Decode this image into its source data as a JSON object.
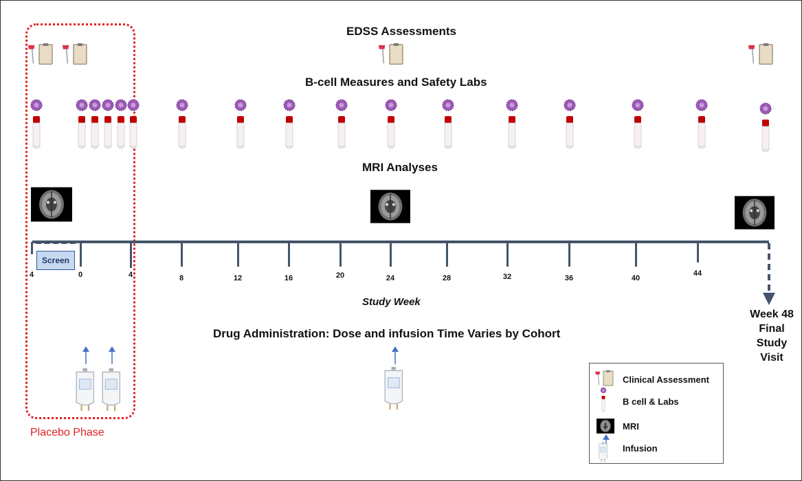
{
  "headings": {
    "edss": "EDSS Assessments",
    "bcell": "B-cell Measures and Safety Labs",
    "mri": "MRI Analyses",
    "drug": "Drug Administration: Dose and infusion Time Varies by Cohort"
  },
  "timeline": {
    "screen_label": "Screen",
    "axis_label": "Study Week",
    "final_lines": [
      "Week 48",
      "Final",
      "Study",
      "Visit"
    ],
    "placebo_label": "Placebo Phase",
    "week_labels": [
      "4",
      "0",
      "4",
      "8",
      "12",
      "16",
      "20",
      "24",
      "28",
      "32",
      "36",
      "40",
      "44"
    ]
  },
  "legend": {
    "items": [
      {
        "label": "Clinical Assessment",
        "icon": "reflex-hammer-clipboard-icon"
      },
      {
        "label": "B cell & Labs",
        "icon": "bcell-blood-tube-icon"
      },
      {
        "label": "MRI",
        "icon": "brain-mri-icon"
      },
      {
        "label": "Infusion",
        "icon": "iv-bag-icon"
      }
    ]
  },
  "colors": {
    "axis": "#44546a",
    "placebo": "#e02020",
    "screen_fill": "#c6d9f1",
    "infusion_arrow": "#4472c4",
    "blood": "#c00000",
    "bcell": "#9b59b6"
  }
}
